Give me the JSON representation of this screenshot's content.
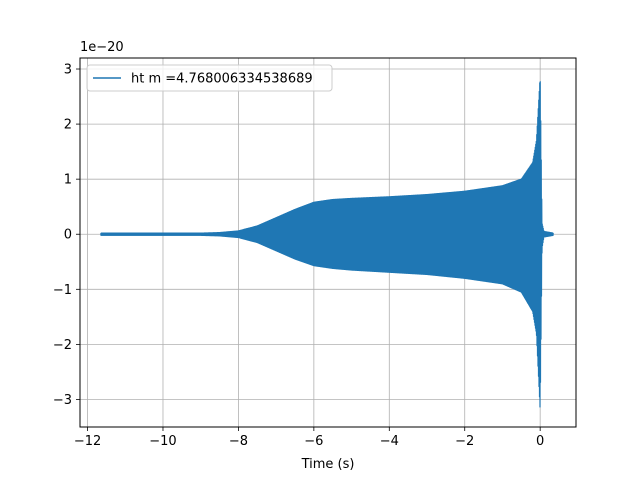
{
  "chart_data": {
    "type": "line",
    "title": "",
    "xlabel": "Time (s)",
    "ylabel": "",
    "y_offset_label": "1e−20",
    "xlim": [
      -12.2,
      0.95
    ],
    "ylim": [
      -3.5,
      3.2
    ],
    "xticks": [
      -12,
      -10,
      -8,
      -6,
      -4,
      -2,
      0
    ],
    "xtick_labels": [
      "−12",
      "−10",
      "−8",
      "−6",
      "−4",
      "−2",
      "0"
    ],
    "yticks": [
      -3,
      -2,
      -1,
      0,
      1,
      2,
      3
    ],
    "ytick_labels": [
      "−3",
      "−2",
      "−1",
      "0",
      "1",
      "2",
      "3"
    ],
    "grid": true,
    "legend_placement": "top-left",
    "series": [
      {
        "name": "ht m =4.768006334538689",
        "color": "#1f77b4",
        "style": "dense oscillating chirp",
        "x_range": [
          -11.65,
          0.35
        ],
        "envelope": {
          "x": [
            -11.65,
            -10,
            -9,
            -8.5,
            -8,
            -7.5,
            -7,
            -6.5,
            -6,
            -5.5,
            -5,
            -4,
            -3,
            -2,
            -1,
            -0.5,
            -0.2,
            -0.1,
            0,
            0.05,
            0.1,
            0.35
          ],
          "upper": [
            0.02,
            0.02,
            0.02,
            0.03,
            0.06,
            0.15,
            0.3,
            0.45,
            0.58,
            0.63,
            0.65,
            0.68,
            0.72,
            0.78,
            0.88,
            1.0,
            1.3,
            1.7,
            2.88,
            0.2,
            0.05,
            0.02
          ],
          "lower": [
            -0.02,
            -0.02,
            -0.02,
            -0.03,
            -0.06,
            -0.15,
            -0.3,
            -0.45,
            -0.57,
            -0.62,
            -0.65,
            -0.69,
            -0.73,
            -0.8,
            -0.9,
            -1.05,
            -1.4,
            -1.8,
            -3.2,
            -0.25,
            -0.05,
            -0.02
          ]
        }
      }
    ]
  }
}
